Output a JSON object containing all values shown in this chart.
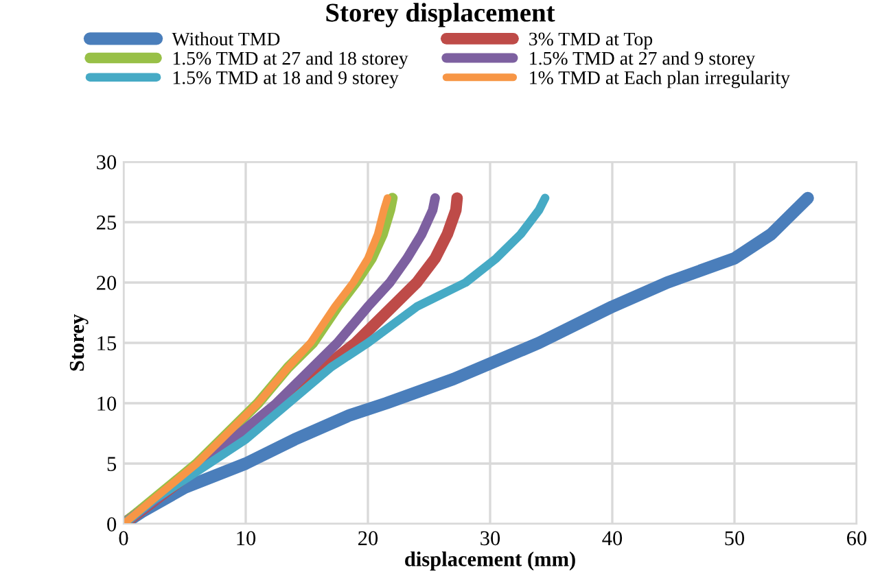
{
  "chart_data": {
    "type": "line",
    "title": "Storey displacement",
    "xlabel": "displacement (mm)",
    "ylabel": "Storey",
    "xlim": [
      0,
      60
    ],
    "xticks": [
      0,
      10,
      20,
      30,
      40,
      50,
      60
    ],
    "ylim": [
      0,
      30
    ],
    "yticks": [
      0,
      5,
      10,
      15,
      20,
      25,
      30
    ],
    "grid": true,
    "legend": "top",
    "line_style": "solid",
    "marker": "none",
    "series": [
      {
        "name": "Without TMD",
        "color": "#4a7ebb",
        "x": [
          0,
          1.5,
          5,
          10,
          14,
          18.5,
          21.5,
          27,
          34,
          40,
          44.5,
          50,
          53,
          55,
          56
        ],
        "values": [
          0,
          1,
          3,
          5,
          7,
          9,
          10,
          12,
          15,
          18,
          20,
          22,
          24,
          26,
          27
        ]
      },
      {
        "name": "3% TMD at Top",
        "color": "#be4b48",
        "x": [
          0,
          6.5,
          9.5,
          13,
          16.5,
          19,
          22,
          24,
          25.5,
          26.5,
          27.2,
          27.3
        ],
        "values": [
          0,
          5,
          7,
          10,
          13,
          15,
          18,
          20,
          22,
          24,
          26,
          27
        ]
      },
      {
        "name": "1.5% TMD at 27 and 18 storey",
        "color": "#98c047",
        "x": [
          0,
          6,
          11,
          13.5,
          15.5,
          17.5,
          19,
          20.3,
          21.2,
          21.8,
          22
        ],
        "values": [
          0,
          5,
          10,
          13,
          15,
          18,
          20,
          22,
          24,
          26,
          27
        ]
      },
      {
        "name": "1.5% TMD at 27 and 9 storey",
        "color": "#7d60a0",
        "x": [
          0,
          6.5,
          12.5,
          15.5,
          17.5,
          20,
          21.8,
          23.2,
          24.4,
          25.3,
          25.5
        ],
        "values": [
          0,
          5,
          10,
          13,
          15,
          18,
          20,
          22,
          24,
          26,
          27
        ]
      },
      {
        "name": "1.5% TMD at 18 and 9 storey",
        "color": "#46aac5",
        "x": [
          0,
          2.5,
          7,
          10,
          13.5,
          17,
          20,
          24,
          28,
          30.5,
          32.5,
          34,
          34.5
        ],
        "values": [
          0,
          2,
          5,
          7,
          10,
          13,
          15,
          18,
          20,
          22,
          24,
          26,
          27
        ]
      },
      {
        "name": "1% TMD at Each plan irregularity",
        "color": "#f79646",
        "x": [
          0,
          6,
          11,
          13.5,
          15.3,
          17.3,
          18.8,
          20,
          20.8,
          21.3,
          21.6
        ],
        "values": [
          0,
          5,
          10,
          13,
          15,
          18,
          20,
          22,
          24,
          26,
          27
        ]
      }
    ]
  }
}
